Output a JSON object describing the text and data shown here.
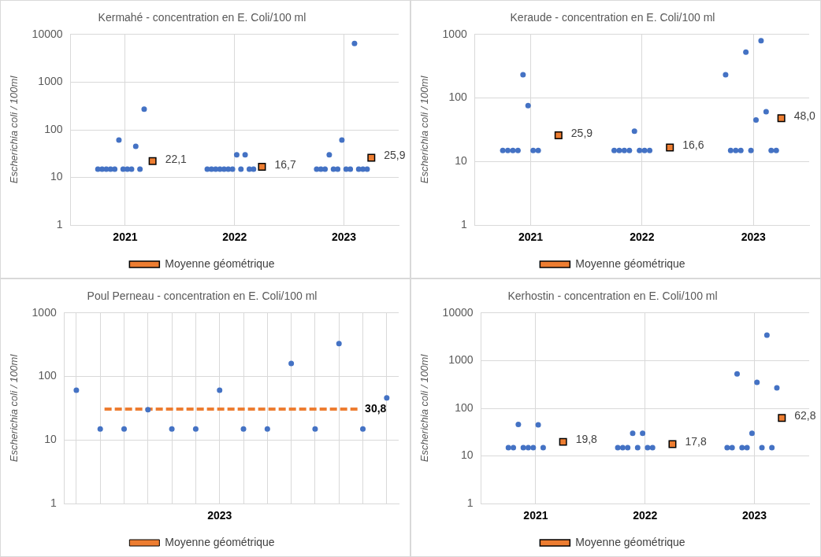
{
  "chart_data": [
    {
      "type": "scatter",
      "title": "Kermahé - concentration en E. Coli/100 ml",
      "ylabel": "Escherichia coli / 100ml",
      "log": "y",
      "grid": true,
      "legend": "bottom",
      "marker": "circle",
      "categories": [
        "2021",
        "2022",
        "2023"
      ],
      "ylim": [
        1,
        10000
      ],
      "yticks": [
        1,
        10,
        100,
        1000,
        10000
      ],
      "series": [
        {
          "color": "#4472c4",
          "values": [
            15,
            15,
            15
          ]
        },
        {
          "color": "#4472c4",
          "values": [
            15,
            15,
            15
          ]
        },
        {
          "color": "#4472c4",
          "values": [
            15,
            15,
            15
          ]
        },
        {
          "color": "#4472c4",
          "values": [
            15,
            15,
            30
          ]
        },
        {
          "color": "#4472c4",
          "values": [
            15,
            15,
            15
          ]
        },
        {
          "color": "#4472c4",
          "values": [
            61,
            15,
            15
          ]
        },
        {
          "color": "#4472c4",
          "values": [
            15,
            15,
            61
          ]
        },
        {
          "color": "#4472c4",
          "values": [
            15,
            30,
            15
          ]
        },
        {
          "color": "#4472c4",
          "values": [
            15,
            15,
            15
          ]
        },
        {
          "color": "#4472c4",
          "values": [
            45,
            30,
            6500
          ]
        },
        {
          "color": "#4472c4",
          "values": [
            15,
            15,
            15
          ]
        },
        {
          "color": "#4472c4",
          "values": [
            270,
            15,
            15
          ]
        },
        {
          "color": "#4472c4",
          "values": [
            null,
            null,
            15
          ]
        },
        {
          "name": "Moyenne géométrique",
          "color": "#ed7d31",
          "marker": "square",
          "values": [
            22.1,
            16.7,
            25.9
          ],
          "value_labels": [
            "22,1",
            "16,7",
            "25,9"
          ]
        }
      ]
    },
    {
      "type": "scatter",
      "title": "Keraude - concentration en E. Coli/100 ml",
      "ylabel": "Escherichia coli / 100ml",
      "log": "y",
      "grid": true,
      "legend": "bottom",
      "marker": "circle",
      "categories": [
        "2021",
        "2022",
        "2023"
      ],
      "ylim": [
        1,
        1000
      ],
      "yticks": [
        1,
        10,
        100,
        1000
      ],
      "series": [
        {
          "color": "#4472c4",
          "values": [
            15,
            15,
            233
          ]
        },
        {
          "color": "#4472c4",
          "values": [
            15,
            15,
            15
          ]
        },
        {
          "color": "#4472c4",
          "values": [
            15,
            15,
            15
          ]
        },
        {
          "color": "#4472c4",
          "values": [
            15,
            15,
            15
          ]
        },
        {
          "color": "#4472c4",
          "values": [
            233,
            30,
            527
          ]
        },
        {
          "color": "#4472c4",
          "values": [
            76,
            15,
            15
          ]
        },
        {
          "color": "#4472c4",
          "values": [
            15,
            15,
            45
          ]
        },
        {
          "color": "#4472c4",
          "values": [
            15,
            15,
            798
          ]
        },
        {
          "color": "#4472c4",
          "values": [
            null,
            null,
            61
          ]
        },
        {
          "color": "#4472c4",
          "values": [
            null,
            null,
            15
          ]
        },
        {
          "color": "#4472c4",
          "values": [
            null,
            null,
            15
          ]
        },
        {
          "name": "Moyenne géométrique",
          "color": "#ed7d31",
          "marker": "square",
          "values": [
            25.9,
            16.6,
            48.0
          ],
          "value_labels": [
            "25,9",
            "16,6",
            "48,0"
          ]
        }
      ]
    },
    {
      "type": "scatter",
      "title": "Poul Perneau - concentration en E. Coli/100 ml",
      "ylabel": "Escherichia coli / 100ml",
      "log": "y",
      "grid": true,
      "legend": "bottom",
      "marker": "circle",
      "categories": [
        null,
        null,
        null,
        null,
        null,
        null,
        "2023",
        null,
        null,
        null,
        null,
        null,
        null,
        null
      ],
      "ylim": [
        1,
        1000
      ],
      "yticks": [
        1,
        10,
        100,
        1000
      ],
      "series": [
        {
          "color": "#4472c4",
          "values": [
            61,
            15,
            15,
            30,
            15,
            15,
            61,
            15,
            15,
            160,
            15,
            330,
            15,
            46
          ]
        }
      ],
      "ref_lines": [
        {
          "axis": "y",
          "value": 30.8,
          "label": "Moyenne géométrique",
          "color": "#ed7d31",
          "line_style": "dashed"
        }
      ],
      "annotations": [
        "30,8"
      ]
    },
    {
      "type": "scatter",
      "title": "Kerhostin - concentration en E. Coli/100 ml",
      "ylabel": "Escherichia coli / 100ml",
      "log": "y",
      "grid": true,
      "legend": "bottom",
      "marker": "circle",
      "categories": [
        "2021",
        "2022",
        "2023"
      ],
      "ylim": [
        1,
        10000
      ],
      "yticks": [
        1,
        10,
        100,
        1000,
        10000
      ],
      "series": [
        {
          "color": "#4472c4",
          "values": [
            15,
            15,
            15
          ]
        },
        {
          "color": "#4472c4",
          "values": [
            15,
            15,
            15
          ]
        },
        {
          "color": "#4472c4",
          "values": [
            46,
            15,
            528
          ]
        },
        {
          "color": "#4472c4",
          "values": [
            15,
            30,
            15
          ]
        },
        {
          "color": "#4472c4",
          "values": [
            15,
            15,
            15
          ]
        },
        {
          "color": "#4472c4",
          "values": [
            15,
            30,
            30
          ]
        },
        {
          "color": "#4472c4",
          "values": [
            45,
            15,
            349
          ]
        },
        {
          "color": "#4472c4",
          "values": [
            15,
            15,
            15
          ]
        },
        {
          "color": "#4472c4",
          "values": [
            null,
            null,
            3410
          ]
        },
        {
          "color": "#4472c4",
          "values": [
            null,
            null,
            15
          ]
        },
        {
          "color": "#4472c4",
          "values": [
            null,
            null,
            268
          ]
        },
        {
          "name": "Moyenne géométrique",
          "color": "#ed7d31",
          "marker": "square",
          "values": [
            19.8,
            17.8,
            62.8
          ],
          "value_labels": [
            "19,8",
            "17,8",
            "62,8"
          ]
        }
      ]
    }
  ]
}
